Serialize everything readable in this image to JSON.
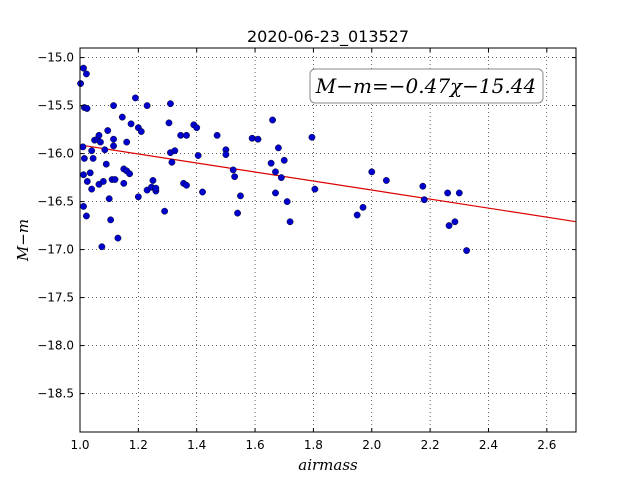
{
  "chart_data": {
    "type": "scatter",
    "title": "2020-06-23_013527",
    "xlabel": "airmass",
    "ylabel": "M−m",
    "xlim": [
      1.0,
      2.7
    ],
    "ylim": [
      -18.9,
      -14.9
    ],
    "y_inverted": true,
    "grid": true,
    "x_ticks": [
      1.0,
      1.2,
      1.4,
      1.6,
      1.8,
      2.0,
      2.2,
      2.4,
      2.6
    ],
    "x_tick_labels": [
      "1.0",
      "1.2",
      "1.4",
      "1.6",
      "1.8",
      "2.0",
      "2.2",
      "2.4",
      "2.6"
    ],
    "y_ticks": [
      -15.0,
      -15.5,
      -16.0,
      -16.5,
      -17.0,
      -17.5,
      -18.0,
      -18.5
    ],
    "y_tick_labels": [
      "−15.0",
      "−15.5",
      "−16.0",
      "−16.5",
      "−17.0",
      "−17.5",
      "−18.0",
      "−18.5"
    ],
    "fit_label": "M−m=−0.47χ−15.44",
    "fit": {
      "slope": -0.47,
      "intercept": -15.44,
      "color": "#dd0000"
    },
    "point_color": "#0000cc",
    "points": [
      [
        1.002,
        -15.27
      ],
      [
        1.012,
        -15.11
      ],
      [
        1.022,
        -15.17
      ],
      [
        1.015,
        -15.52
      ],
      [
        1.024,
        -15.53
      ],
      [
        1.01,
        -15.93
      ],
      [
        1.015,
        -16.05
      ],
      [
        1.012,
        -16.22
      ],
      [
        1.025,
        -16.29
      ],
      [
        1.012,
        -16.55
      ],
      [
        1.022,
        -16.65
      ],
      [
        1.035,
        -16.2
      ],
      [
        1.04,
        -16.37
      ],
      [
        1.045,
        -16.05
      ],
      [
        1.04,
        -15.97
      ],
      [
        1.05,
        -15.86
      ],
      [
        1.06,
        -15.85
      ],
      [
        1.065,
        -15.81
      ],
      [
        1.07,
        -15.88
      ],
      [
        1.065,
        -16.32
      ],
      [
        1.08,
        -16.29
      ],
      [
        1.085,
        -15.96
      ],
      [
        1.09,
        -16.11
      ],
      [
        1.095,
        -15.76
      ],
      [
        1.1,
        -16.47
      ],
      [
        1.105,
        -16.69
      ],
      [
        1.11,
        -16.27
      ],
      [
        1.115,
        -15.85
      ],
      [
        1.115,
        -15.92
      ],
      [
        1.12,
        -16.27
      ],
      [
        1.075,
        -16.97
      ],
      [
        1.13,
        -16.88
      ],
      [
        1.115,
        -15.5
      ],
      [
        1.145,
        -15.62
      ],
      [
        1.15,
        -16.16
      ],
      [
        1.15,
        -16.31
      ],
      [
        1.16,
        -16.18
      ],
      [
        1.16,
        -15.88
      ],
      [
        1.17,
        -16.21
      ],
      [
        1.175,
        -15.69
      ],
      [
        1.19,
        -15.42
      ],
      [
        1.2,
        -15.73
      ],
      [
        1.21,
        -15.77
      ],
      [
        1.2,
        -16.45
      ],
      [
        1.23,
        -15.5
      ],
      [
        1.23,
        -16.38
      ],
      [
        1.245,
        -16.35
      ],
      [
        1.25,
        -16.28
      ],
      [
        1.26,
        -16.39
      ],
      [
        1.26,
        -16.36
      ],
      [
        1.29,
        -16.6
      ],
      [
        1.305,
        -15.68
      ],
      [
        1.31,
        -15.48
      ],
      [
        1.31,
        -15.99
      ],
      [
        1.315,
        -16.09
      ],
      [
        1.325,
        -15.97
      ],
      [
        1.345,
        -15.81
      ],
      [
        1.355,
        -16.31
      ],
      [
        1.365,
        -15.81
      ],
      [
        1.365,
        -16.33
      ],
      [
        1.39,
        -15.7
      ],
      [
        1.4,
        -15.73
      ],
      [
        1.405,
        -16.02
      ],
      [
        1.42,
        -16.4
      ],
      [
        1.47,
        -15.81
      ],
      [
        1.5,
        -15.96
      ],
      [
        1.5,
        -16.01
      ],
      [
        1.525,
        -16.17
      ],
      [
        1.53,
        -16.24
      ],
      [
        1.54,
        -16.62
      ],
      [
        1.55,
        -16.44
      ],
      [
        1.59,
        -15.84
      ],
      [
        1.61,
        -15.85
      ],
      [
        1.655,
        -16.1
      ],
      [
        1.66,
        -15.65
      ],
      [
        1.67,
        -16.19
      ],
      [
        1.67,
        -16.41
      ],
      [
        1.68,
        -15.94
      ],
      [
        1.69,
        -16.25
      ],
      [
        1.7,
        -16.07
      ],
      [
        1.71,
        -16.5
      ],
      [
        1.72,
        -16.71
      ],
      [
        1.795,
        -15.83
      ],
      [
        1.805,
        -16.37
      ],
      [
        1.95,
        -16.64
      ],
      [
        1.97,
        -16.56
      ],
      [
        2.0,
        -16.19
      ],
      [
        2.05,
        -16.28
      ],
      [
        2.175,
        -16.34
      ],
      [
        2.18,
        -16.48
      ],
      [
        2.26,
        -16.41
      ],
      [
        2.265,
        -16.75
      ],
      [
        2.285,
        -16.71
      ],
      [
        2.3,
        -16.41
      ],
      [
        2.325,
        -17.01
      ]
    ]
  }
}
